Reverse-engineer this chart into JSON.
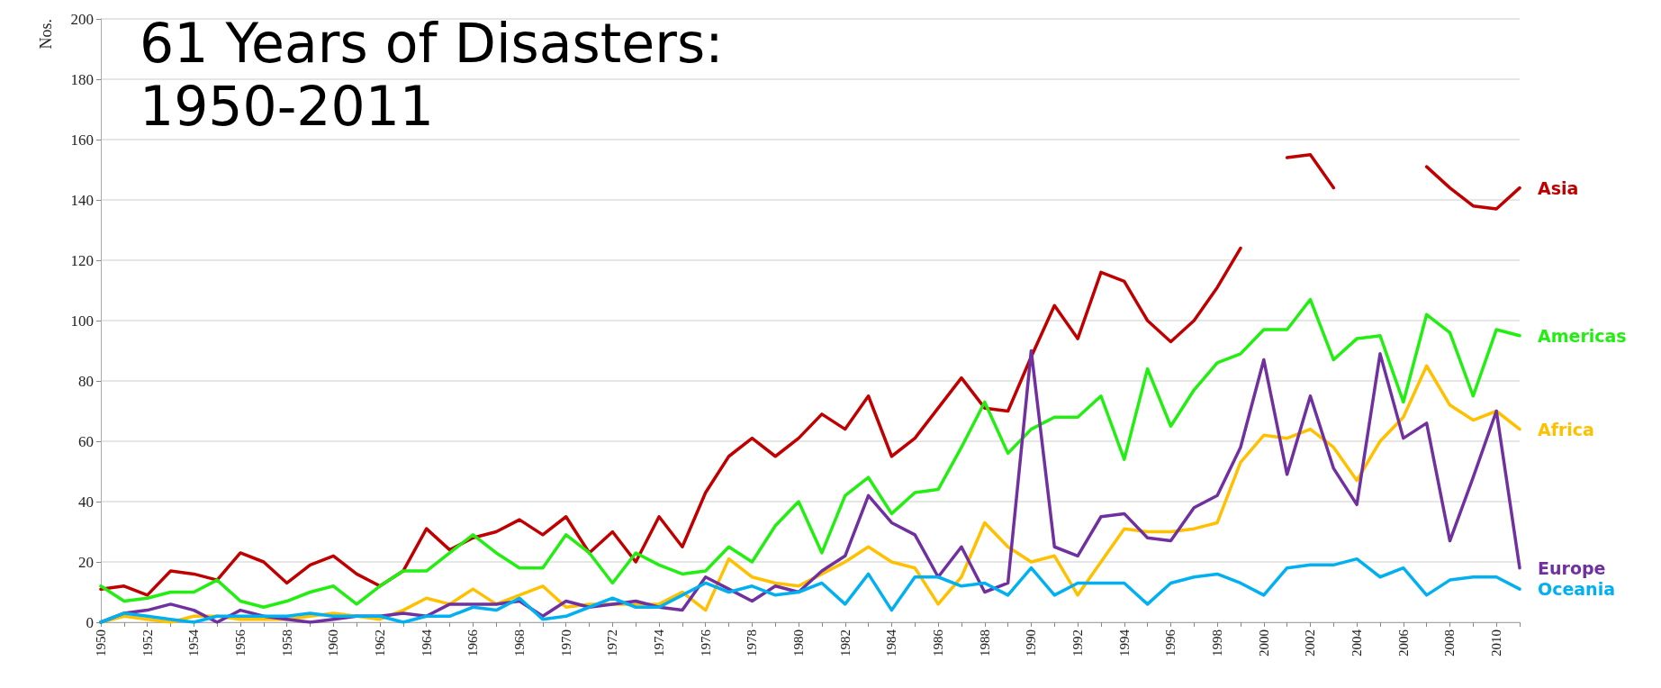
{
  "chart_data": {
    "type": "line",
    "title": "61 Years of Disasters: 1950-2011",
    "ylabel": "Nos.",
    "categories": [
      "1950",
      null,
      "1952",
      null,
      "1954",
      null,
      "1956",
      null,
      "1958",
      null,
      "1960",
      null,
      "1962",
      null,
      "1964",
      null,
      "1966",
      null,
      "1968",
      null,
      "1970",
      null,
      "1972",
      null,
      "1974",
      null,
      "1976",
      null,
      "1978",
      null,
      "1980",
      null,
      "1982",
      null,
      "1984",
      null,
      "1986",
      null,
      "1988",
      null,
      "1990",
      null,
      "1992",
      null,
      "1994",
      null,
      "1996",
      null,
      "1998",
      null,
      "2000",
      null,
      "2002",
      null,
      "2004",
      null,
      "2006",
      null,
      "2008",
      null,
      "2010",
      null
    ],
    "series": [
      {
        "name": "Asia",
        "color": "#c00000",
        "values": [
          11,
          12,
          9,
          17,
          16,
          14,
          23,
          20,
          13,
          19,
          22,
          16,
          12,
          17,
          31,
          24,
          28,
          30,
          34,
          29,
          35,
          23,
          30,
          20,
          35,
          25,
          43,
          55,
          61,
          55,
          61,
          69,
          64,
          75,
          55,
          61,
          71,
          81,
          71,
          70,
          88,
          105,
          94,
          116,
          113,
          100,
          93,
          100,
          111,
          124,
          null,
          154,
          155,
          144,
          null,
          null,
          null,
          151,
          144,
          138,
          137,
          144
        ]
      },
      {
        "name": "Americas",
        "color": "#22ee11",
        "values": [
          12,
          7,
          8,
          10,
          10,
          14,
          7,
          5,
          7,
          10,
          12,
          6,
          12,
          17,
          17,
          23,
          29,
          23,
          18,
          18,
          29,
          23,
          13,
          23,
          19,
          16,
          17,
          25,
          20,
          32,
          40,
          23,
          42,
          48,
          36,
          43,
          44,
          58,
          73,
          56,
          64,
          68,
          68,
          75,
          54,
          84,
          65,
          77,
          86,
          89,
          97,
          97,
          107,
          87,
          94,
          95,
          73,
          102,
          96,
          75,
          97,
          95
        ]
      },
      {
        "name": "Africa",
        "color": "#ffc000",
        "values": [
          0,
          2,
          1,
          0,
          2,
          2,
          1,
          1,
          1,
          2,
          3,
          2,
          1,
          4,
          8,
          6,
          11,
          6,
          9,
          12,
          5,
          6,
          6,
          6,
          6,
          10,
          4,
          21,
          15,
          13,
          12,
          16,
          20,
          25,
          20,
          18,
          6,
          15,
          33,
          25,
          20,
          22,
          9,
          20,
          31,
          30,
          30,
          31,
          33,
          53,
          62,
          61,
          64,
          58,
          47,
          60,
          68,
          85,
          72,
          67,
          70,
          64
        ]
      },
      {
        "name": "Europe",
        "color": "#7030a0",
        "values": [
          0,
          3,
          4,
          6,
          4,
          0,
          4,
          2,
          1,
          0,
          1,
          2,
          2,
          3,
          2,
          6,
          6,
          6,
          7,
          2,
          7,
          5,
          6,
          7,
          5,
          4,
          15,
          11,
          7,
          12,
          10,
          17,
          22,
          42,
          33,
          29,
          15,
          25,
          10,
          13,
          90,
          25,
          22,
          35,
          36,
          28,
          27,
          38,
          42,
          58,
          87,
          49,
          75,
          51,
          39,
          89,
          61,
          66,
          27,
          48,
          70,
          18
        ]
      },
      {
        "name": "Oceania",
        "color": "#00b0f0",
        "values": [
          0,
          3,
          2,
          1,
          0,
          2,
          2,
          2,
          2,
          3,
          2,
          2,
          2,
          0,
          2,
          2,
          5,
          4,
          8,
          1,
          2,
          5,
          8,
          5,
          5,
          9,
          13,
          10,
          12,
          9,
          10,
          13,
          6,
          16,
          4,
          15,
          15,
          12,
          13,
          9,
          18,
          9,
          13,
          13,
          13,
          6,
          13,
          15,
          16,
          13,
          9,
          18,
          19,
          19,
          21,
          15,
          18,
          9,
          14,
          15,
          15,
          11
        ]
      }
    ],
    "ylim": [
      0,
      200
    ],
    "yticks": [
      0,
      20,
      40,
      60,
      80,
      100,
      120,
      140,
      160,
      180,
      200
    ],
    "grid": "y",
    "legend": false,
    "marker": "none",
    "line_style": "solid"
  }
}
